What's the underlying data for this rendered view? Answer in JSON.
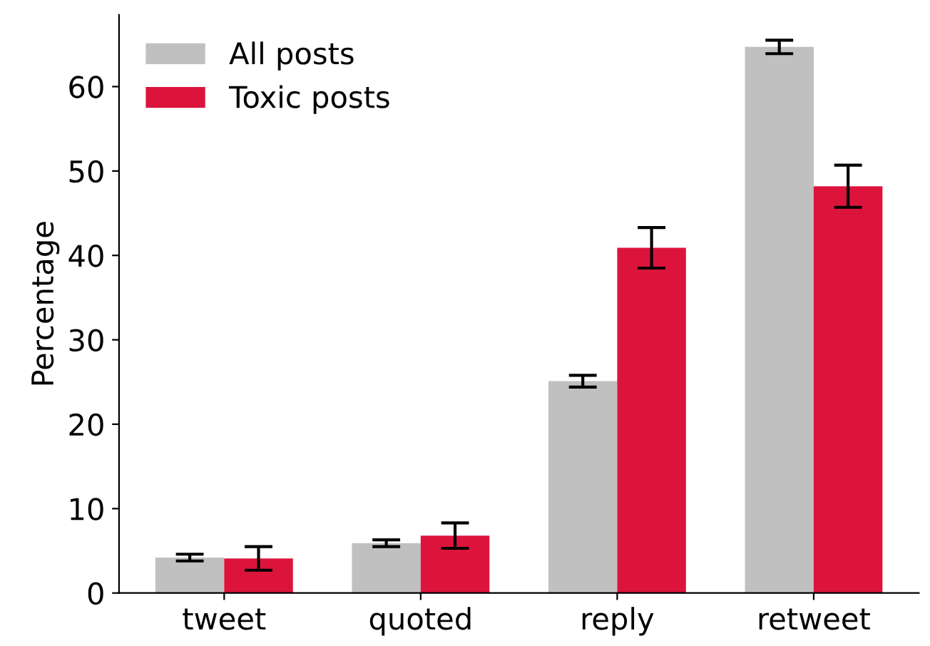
{
  "chart_data": {
    "type": "bar",
    "ylabel": "Percentage",
    "categories": [
      "tweet",
      "quoted",
      "reply",
      "retweet"
    ],
    "series": [
      {
        "name": "All posts",
        "color": "#c0c0c0",
        "values": [
          4.2,
          5.9,
          25.1,
          64.7
        ],
        "errors": [
          0.4,
          0.4,
          0.7,
          0.8
        ]
      },
      {
        "name": "Toxic posts",
        "color": "#dc143c",
        "values": [
          4.1,
          6.8,
          40.9,
          48.2
        ],
        "errors": [
          1.4,
          1.5,
          2.4,
          2.5
        ]
      }
    ],
    "ylim": [
      0,
      68.5
    ],
    "yticks": [
      0,
      10,
      20,
      30,
      40,
      50,
      60
    ],
    "legend": "top left",
    "grid": false
  }
}
